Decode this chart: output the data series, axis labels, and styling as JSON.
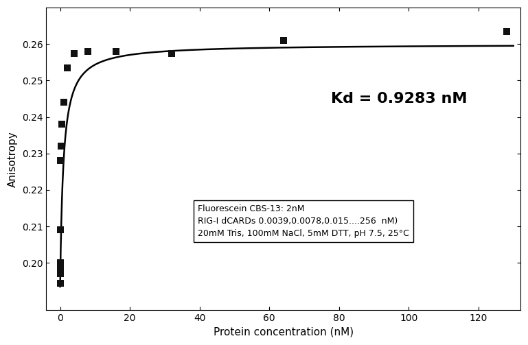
{
  "scatter_x": [
    0.0039,
    0.0078,
    0.015,
    0.03,
    0.0625,
    0.125,
    0.25,
    0.5,
    1.0,
    2.0,
    4.0,
    8.0,
    16.0,
    32.0,
    64.0,
    128.0
  ],
  "scatter_y": [
    0.1945,
    0.197,
    0.199,
    0.2,
    0.209,
    0.228,
    0.232,
    0.238,
    0.244,
    0.2535,
    0.2575,
    0.258,
    0.258,
    0.2575,
    0.261,
    0.2635
  ],
  "Kd": 0.9283,
  "Fmin": 0.1935,
  "Fmax": 0.26,
  "xlabel": "Protein concentration (nM)",
  "ylabel": "Anisotropy",
  "kd_label": "Kd = 0.9283 nM",
  "annotation_lines": [
    "Fluorescein CBS-13: 2nM",
    "RIG-I dCARDs 0.0039,0.0078,0.015....256  nM)",
    "20mM Tris, 100mM NaCl, 5mM DTT, pH 7.5, 25°C"
  ],
  "xlim": [
    -4,
    132
  ],
  "ylim": [
    0.187,
    0.27
  ],
  "yticks": [
    0.2,
    0.21,
    0.22,
    0.23,
    0.24,
    0.25,
    0.26
  ],
  "xticks": [
    0,
    20,
    40,
    60,
    80,
    100,
    120
  ],
  "background_color": "#ffffff",
  "scatter_color": "#111111",
  "line_color": "#000000",
  "marker": "s",
  "markersize": 7,
  "line_width": 1.8,
  "figsize": [
    7.69,
    5.03
  ],
  "dpi": 100,
  "kd_fontsize": 16,
  "annotation_fontsize": 9,
  "axis_label_fontsize": 11,
  "tick_labelsize": 10
}
